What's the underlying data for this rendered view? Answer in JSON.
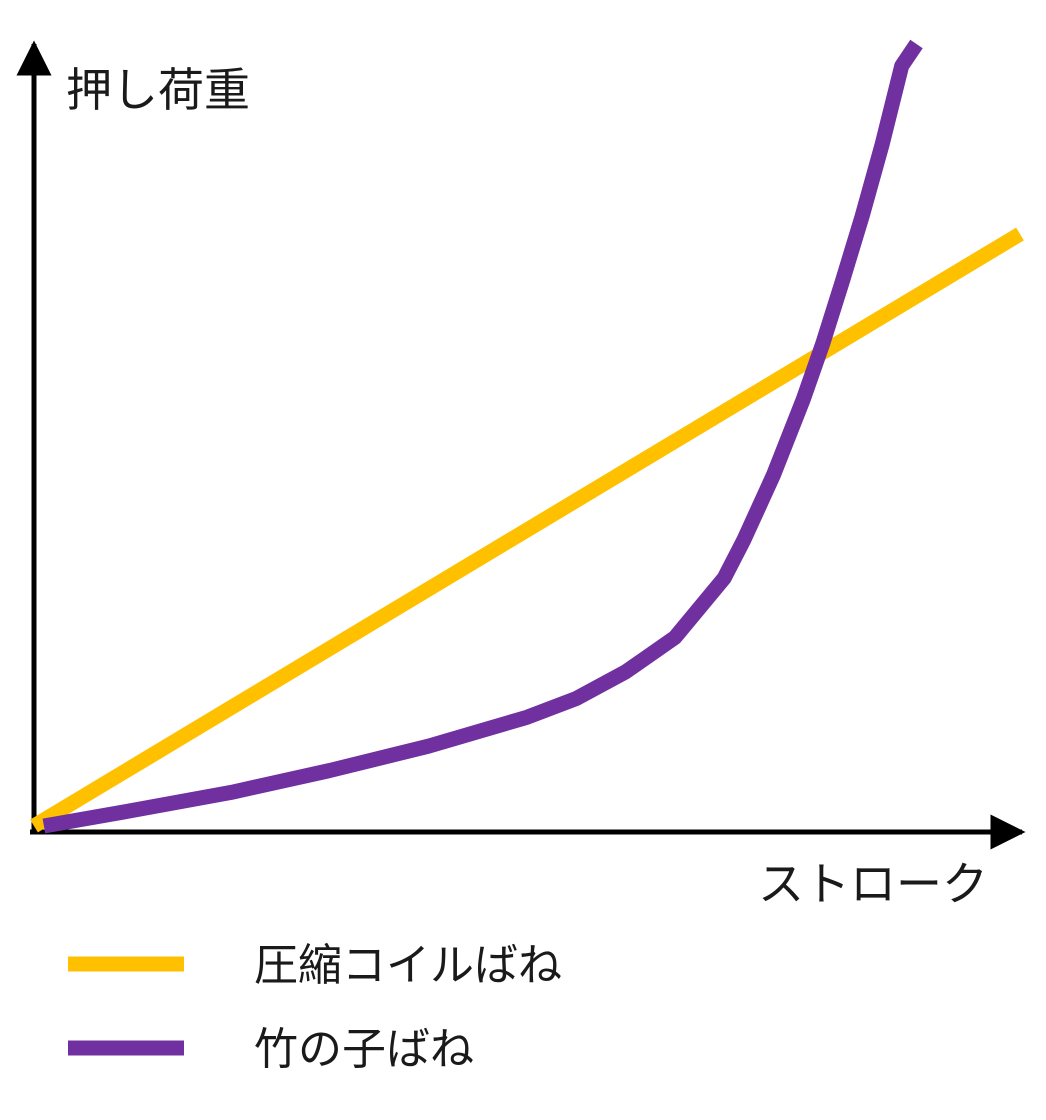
{
  "chart_data": {
    "type": "line",
    "title": "",
    "ylabel": "押し荷重",
    "xlabel": "ストローク",
    "xlim": [
      0,
      10
    ],
    "ylim": [
      0,
      10
    ],
    "grid": false,
    "legend_placement": "bottom-left",
    "series": [
      {
        "name": "圧縮コイルばね",
        "color": "#FFC000",
        "x": [
          0,
          10
        ],
        "y": [
          0,
          7.57
        ]
      },
      {
        "name": "竹の子ばね",
        "color": "#7030A0",
        "x": [
          0.1,
          1,
          2,
          3,
          4,
          5,
          5.5,
          6,
          6.5,
          7,
          7.2,
          7.5,
          7.8,
          8,
          8.2,
          8.4,
          8.6,
          8.8,
          8.95
        ],
        "y": [
          0,
          0.2,
          0.43,
          0.71,
          1.02,
          1.39,
          1.63,
          1.97,
          2.41,
          3.17,
          3.66,
          4.49,
          5.45,
          6.17,
          6.97,
          7.8,
          8.71,
          9.72,
          10.0
        ]
      }
    ]
  }
}
